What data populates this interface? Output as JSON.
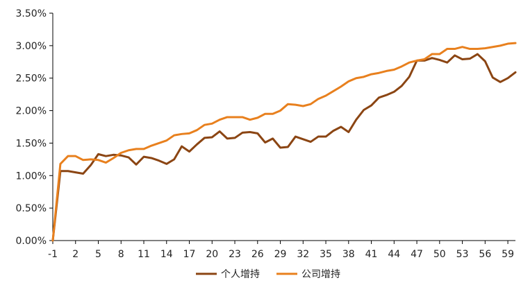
{
  "chart_data": {
    "type": "line",
    "title": "",
    "xlabel": "",
    "ylabel": "",
    "x": [
      -1,
      0,
      1,
      2,
      3,
      4,
      5,
      6,
      7,
      8,
      9,
      10,
      11,
      12,
      13,
      14,
      15,
      16,
      17,
      18,
      19,
      20,
      21,
      22,
      23,
      24,
      25,
      26,
      27,
      28,
      29,
      30,
      31,
      32,
      33,
      34,
      35,
      36,
      37,
      38,
      39,
      40,
      41,
      42,
      43,
      44,
      45,
      46,
      47,
      48,
      49,
      50,
      51,
      52,
      53,
      54,
      55,
      56,
      57,
      58,
      59,
      60
    ],
    "x_tick_labels": [
      "-1",
      "2",
      "5",
      "8",
      "11",
      "14",
      "17",
      "20",
      "23",
      "26",
      "29",
      "32",
      "35",
      "38",
      "41",
      "44",
      "47",
      "50",
      "53",
      "56",
      "59"
    ],
    "x_tick_values": [
      -1,
      2,
      5,
      8,
      11,
      14,
      17,
      20,
      23,
      26,
      29,
      32,
      35,
      38,
      41,
      44,
      47,
      50,
      53,
      56,
      59
    ],
    "xlim": [
      -1,
      60
    ],
    "ylim": [
      0,
      3.5
    ],
    "y_ticks": [
      0,
      0.5,
      1.0,
      1.5,
      2.0,
      2.5,
      3.0,
      3.5
    ],
    "y_tick_labels": [
      "0.00%",
      "0.50%",
      "1.00%",
      "1.50%",
      "2.00%",
      "2.50%",
      "3.00%",
      "3.50%"
    ],
    "grid": false,
    "legend_position": "bottom-center",
    "series": [
      {
        "name": "个人增持",
        "color": "#8B4513",
        "values": [
          0.0,
          1.07,
          1.07,
          1.05,
          1.03,
          1.16,
          1.33,
          1.3,
          1.32,
          1.31,
          1.28,
          1.17,
          1.29,
          1.27,
          1.23,
          1.18,
          1.25,
          1.45,
          1.37,
          1.48,
          1.58,
          1.59,
          1.68,
          1.57,
          1.58,
          1.66,
          1.67,
          1.65,
          1.51,
          1.57,
          1.43,
          1.44,
          1.6,
          1.56,
          1.52,
          1.6,
          1.6,
          1.69,
          1.75,
          1.67,
          1.86,
          2.01,
          2.08,
          2.2,
          2.24,
          2.29,
          2.38,
          2.52,
          2.77,
          2.77,
          2.81,
          2.78,
          2.74,
          2.85,
          2.79,
          2.8,
          2.87,
          2.76,
          2.51,
          2.44,
          2.5,
          2.59
        ]
      },
      {
        "name": "公司增持",
        "color": "#E8801E",
        "values": [
          0.0,
          1.18,
          1.3,
          1.3,
          1.24,
          1.25,
          1.24,
          1.2,
          1.27,
          1.35,
          1.39,
          1.41,
          1.41,
          1.46,
          1.5,
          1.54,
          1.62,
          1.64,
          1.65,
          1.7,
          1.78,
          1.8,
          1.86,
          1.9,
          1.9,
          1.9,
          1.86,
          1.89,
          1.95,
          1.95,
          2.0,
          2.1,
          2.09,
          2.07,
          2.1,
          2.18,
          2.23,
          2.3,
          2.37,
          2.45,
          2.5,
          2.52,
          2.56,
          2.58,
          2.61,
          2.63,
          2.68,
          2.74,
          2.77,
          2.79,
          2.87,
          2.87,
          2.95,
          2.95,
          2.98,
          2.95,
          2.95,
          2.96,
          2.98,
          3.0,
          3.03,
          3.04
        ]
      }
    ]
  }
}
